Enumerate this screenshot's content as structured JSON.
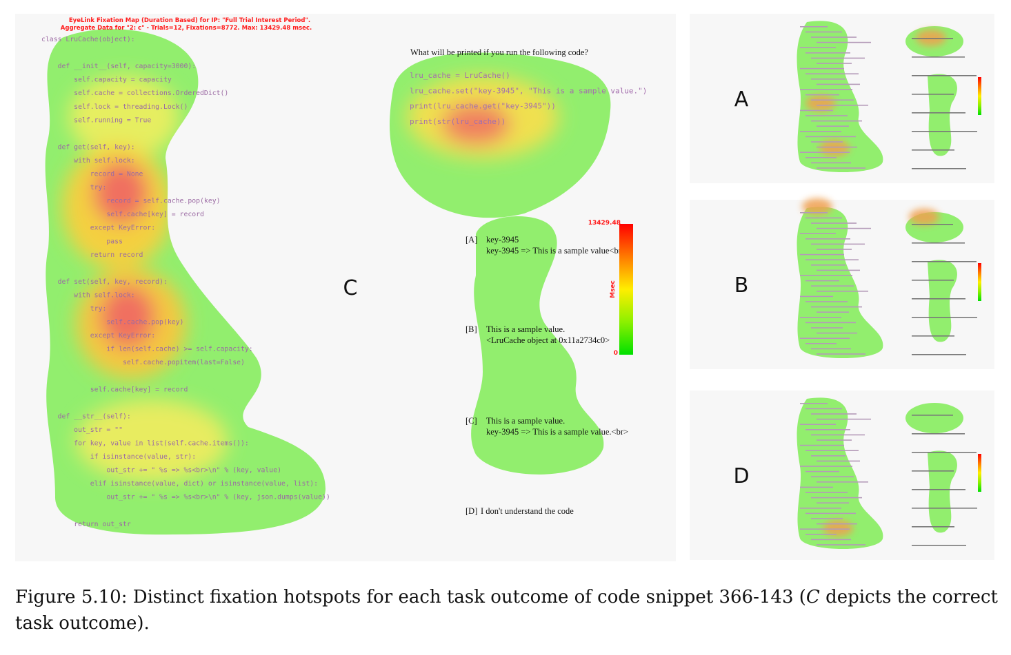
{
  "main_panel": {
    "header": [
      "EyeLink Fixation Map (Duration Based) for IP: \"Full Trial Interest Period\".",
      "Aggregate Data for  \"2: c\" - Trials=12, Fixations=8772. Max: 13429.48 msec."
    ],
    "code": [
      "class LruCache(object):",
      "    def __init__(self, capacity=3000):",
      "        self.capacity = capacity",
      "        self.cache = collections.OrderedDict()",
      "        self.lock = threading.Lock()",
      "        self.running = True",
      "    def get(self, key):",
      "        with self.lock:",
      "            record = None",
      "            try:",
      "                record = self.cache.pop(key)",
      "                self.cache[key] = record",
      "            except KeyError:",
      "                pass",
      "            return record",
      "    def set(self, key, record):",
      "        with self.lock:",
      "            try:",
      "                self.cache.pop(key)",
      "            except KeyError:",
      "                if len(self.cache) >= self.capacity:",
      "                    self.cache.popitem(last=False)",
      "            self.cache[key] = record",
      "    def __str__(self):",
      "        out_str = \"\"",
      "        for key, value in list(self.cache.items()):",
      "            if isinstance(value, str):",
      "                out_str += \" %s => %s<br>\\n\" % (key, value)",
      "            elif isinstance(value, dict) or isinstance(value, list):",
      "                out_str += \" %s => %s<br>\\n\" % (key, json.dumps(value))",
      "        return out_str"
    ],
    "panel_letter": "C",
    "question": "What will be printed if you run the following code?",
    "snippet": [
      "lru_cache = LruCache()",
      "lru_cache.set(\"key-3945\", \"This is a sample value.\")",
      "print(lru_cache.get(\"key-3945\"))",
      "print(str(lru_cache))"
    ],
    "options": [
      {
        "label": "[A]",
        "lines": [
          "key-3945",
          " key-3945 => This is a sample value<br>"
        ]
      },
      {
        "label": "[B]",
        "lines": [
          "This is a sample value.",
          "<LruCache object at 0x11a2734c0>"
        ]
      },
      {
        "label": "[C]",
        "lines": [
          "This is a sample value.",
          " key-3945 => This is a sample value.<br>"
        ]
      },
      {
        "label": "[D]",
        "lines": [
          "I don't understand the code"
        ]
      }
    ],
    "colorbar": {
      "max": 13429.48,
      "unit": "Msec",
      "min": 0
    }
  },
  "side_panels": [
    {
      "letter": "A"
    },
    {
      "letter": "B"
    },
    {
      "letter": "D"
    }
  ],
  "caption": {
    "label": "Figure 5.10:",
    "text": "Distinct fixation hotspots for each task outcome of code snippet 366-143 (",
    "emphasis": "C",
    "text_end": " depicts the correct task outcome)."
  }
}
